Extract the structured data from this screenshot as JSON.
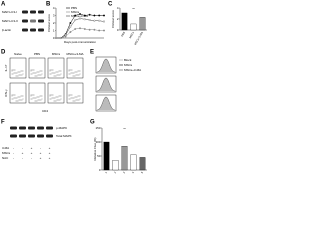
{
  "panels": {
    "A": {
      "letter": "A",
      "rows": [
        "MAP-LC3-I",
        "MAP-LC3-II",
        "β-actin"
      ]
    },
    "B": {
      "letter": "B",
      "type": "line",
      "y_label": "Clinical score",
      "x_label": "Days post-immunization",
      "x": [
        0,
        3,
        6,
        9,
        12,
        15,
        18,
        21,
        24,
        27,
        30
      ],
      "xlim": [
        0,
        30
      ],
      "ylim": [
        0,
        4
      ],
      "yticks": [
        0,
        1,
        2,
        3,
        4
      ],
      "series": [
        {
          "name": "PBS",
          "color": "#000000",
          "values": [
            0,
            0,
            0.5,
            2,
            3,
            3.2,
            3,
            3.1,
            3,
            3,
            3
          ]
        },
        {
          "name": "MSCs",
          "color": "#888888",
          "values": [
            0,
            0,
            0.2,
            0.8,
            1.2,
            1.3,
            1.2,
            1.1,
            1.1,
            1,
            1
          ]
        },
        {
          "name": "MSCs+3-MA",
          "color": "#444444",
          "values": [
            0,
            0,
            0.4,
            1.5,
            2.4,
            2.6,
            2.5,
            2.4,
            2.3,
            2.3,
            2.2
          ]
        }
      ]
    },
    "C": {
      "letter": "C",
      "type": "bar",
      "y_label": "Clinical score",
      "categories": [
        "PBS",
        "MSCs",
        "MSCs+3-MA"
      ],
      "values": [
        3.1,
        1.1,
        2.3
      ],
      "ylim": [
        0,
        4
      ],
      "yticks": [
        0,
        2,
        4
      ],
      "sig": "**"
    },
    "D": {
      "letter": "D",
      "columns": [
        "Naive",
        "PBS",
        "MSCs",
        "MSCs+3-MA"
      ],
      "rows": [
        "IL-17",
        "IFN-γ"
      ],
      "x_label": "CD4"
    },
    "E": {
      "letter": "E",
      "legend": [
        "Block",
        "MSCs",
        "MSCs+3-MA"
      ]
    },
    "F": {
      "letter": "F",
      "rows": [
        "p-MAPK",
        "Total MAPK"
      ],
      "conditions": [
        {
          "name": "3-MA",
          "signs": [
            "-",
            "-",
            "+",
            "-",
            "+"
          ]
        },
        {
          "name": "MSCs",
          "signs": [
            "-",
            "+",
            "+",
            "+",
            "+"
          ]
        },
        {
          "name": "NAC",
          "signs": [
            "-",
            "-",
            "-",
            "+",
            "+"
          ]
        }
      ]
    },
    "G": {
      "letter": "G",
      "type": "bar",
      "y_label": "Relative Fluo (%)",
      "categories": [
        "1",
        "2",
        "3",
        "4",
        "5"
      ],
      "values": [
        100,
        35,
        85,
        55,
        45
      ],
      "ylim": [
        0,
        150
      ],
      "yticks": [
        0,
        50,
        100,
        150
      ],
      "sig": "**"
    }
  }
}
